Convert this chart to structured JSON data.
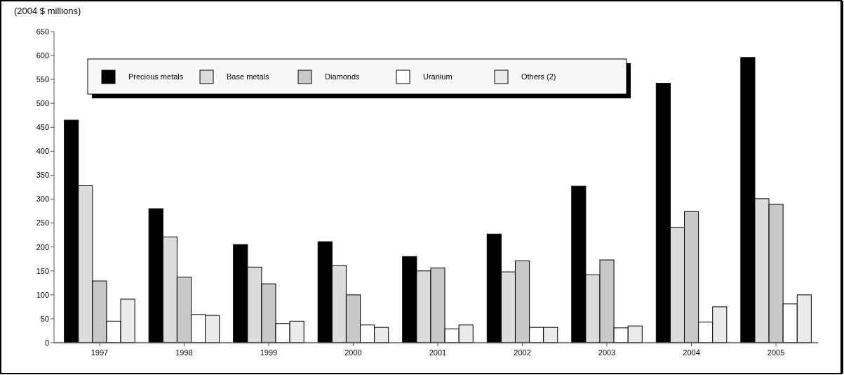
{
  "chart_data": {
    "type": "bar",
    "ylabel": "(2004 $ millions)",
    "categories": [
      "1997",
      "1998",
      "1999",
      "2000",
      "2001",
      "2002",
      "2003",
      "2004",
      "2005"
    ],
    "series": [
      {
        "name": "Precious metals",
        "color": "#000000",
        "values": [
          465,
          280,
          205,
          211,
          180,
          227,
          327,
          542,
          596
        ]
      },
      {
        "name": "Base metals",
        "color": "#dcdcdc",
        "values": [
          328,
          221,
          158,
          161,
          150,
          148,
          142,
          241,
          301
        ]
      },
      {
        "name": "Diamonds",
        "color": "#c8c8c8",
        "values": [
          129,
          137,
          123,
          100,
          156,
          171,
          173,
          274,
          289
        ]
      },
      {
        "name": "Uranium",
        "color": "#ffffff",
        "values": [
          45,
          59,
          40,
          37,
          29,
          32,
          31,
          43,
          81
        ]
      },
      {
        "name": "Others (2)",
        "color": "#ebebeb",
        "values": [
          91,
          57,
          45,
          32,
          37,
          32,
          35,
          75,
          100
        ]
      }
    ],
    "ylim": [
      0,
      650
    ],
    "yticks": [
      0,
      50,
      100,
      150,
      200,
      250,
      300,
      350,
      400,
      450,
      500,
      550,
      600,
      650
    ],
    "legend": "top"
  }
}
